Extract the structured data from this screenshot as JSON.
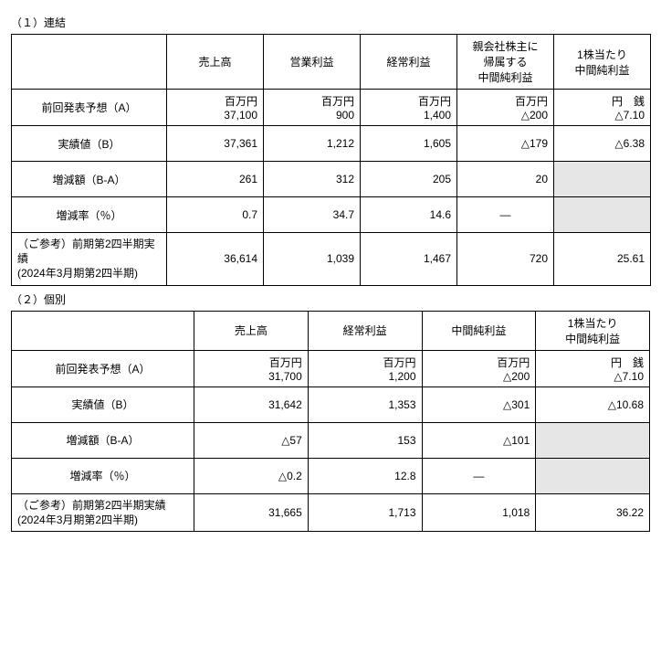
{
  "tables": [
    {
      "title": "（１）連結",
      "columns": [
        "売上高",
        "営業利益",
        "経常利益",
        "親会社株主に\n帰属する\n中間純利益",
        "1株当たり\n中間純利益"
      ],
      "rows": [
        {
          "label": "前回発表予想（A）",
          "cells": [
            {
              "unit": "百万円",
              "value": "37,100"
            },
            {
              "unit": "百万円",
              "value": "900"
            },
            {
              "unit": "百万円",
              "value": "1,400"
            },
            {
              "unit": "百万円",
              "value": "△200"
            },
            {
              "unit": "円　銭",
              "value": "△7.10"
            }
          ]
        },
        {
          "label": "実績値（B）",
          "cells": [
            {
              "value": "37,361"
            },
            {
              "value": "1,212"
            },
            {
              "value": "1,605"
            },
            {
              "value": "△179"
            },
            {
              "value": "△6.38"
            }
          ]
        },
        {
          "label": "増減額（B-A）",
          "cells": [
            {
              "value": "261"
            },
            {
              "value": "312"
            },
            {
              "value": "205"
            },
            {
              "value": "20"
            },
            {
              "shaded": true
            }
          ]
        },
        {
          "label": "増減率（％）",
          "cells": [
            {
              "value": "0.7"
            },
            {
              "value": "34.7"
            },
            {
              "value": "14.6"
            },
            {
              "value": "―",
              "dash": true
            },
            {
              "shaded": true
            }
          ]
        },
        {
          "label": "（ご参考）前期第2四半期実績\n(2024年3月期第2四半期)",
          "multi": true,
          "cells": [
            {
              "value": "36,614"
            },
            {
              "value": "1,039"
            },
            {
              "value": "1,467"
            },
            {
              "value": "720"
            },
            {
              "value": "25.61"
            }
          ]
        }
      ]
    },
    {
      "title": "（２）個別",
      "columns": [
        "売上高",
        "経常利益",
        "中間純利益",
        "1株当たり\n中間純利益"
      ],
      "rows": [
        {
          "label": "前回発表予想（A）",
          "cells": [
            {
              "unit": "百万円",
              "value": "31,700"
            },
            {
              "unit": "百万円",
              "value": "1,200"
            },
            {
              "unit": "百万円",
              "value": "△200"
            },
            {
              "unit": "円　銭",
              "value": "△7.10"
            }
          ]
        },
        {
          "label": "実績値（B）",
          "cells": [
            {
              "value": "31,642"
            },
            {
              "value": "1,353"
            },
            {
              "value": "△301"
            },
            {
              "value": "△10.68"
            }
          ]
        },
        {
          "label": "増減額（B-A）",
          "cells": [
            {
              "value": "△57"
            },
            {
              "value": "153"
            },
            {
              "value": "△101"
            },
            {
              "shaded": true
            }
          ]
        },
        {
          "label": "増減率（％）",
          "cells": [
            {
              "value": "△0.2"
            },
            {
              "value": "12.8"
            },
            {
              "value": "―",
              "dash": true
            },
            {
              "shaded": true
            }
          ]
        },
        {
          "label": "（ご参考）前期第2四半期実績\n(2024年3月期第2四半期)",
          "multi": true,
          "cells": [
            {
              "value": "31,665"
            },
            {
              "value": "1,713"
            },
            {
              "value": "1,018"
            },
            {
              "value": "36.22"
            }
          ]
        }
      ]
    }
  ]
}
